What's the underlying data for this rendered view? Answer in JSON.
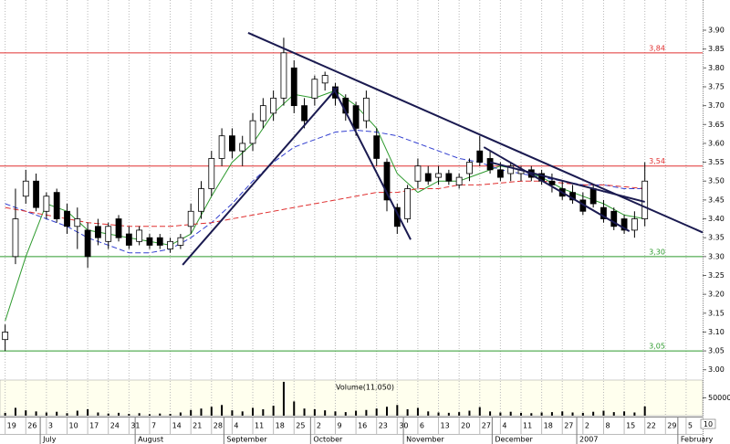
{
  "chart_data": {
    "type": "candlestick",
    "xlim": [
      -0.5,
      67.6
    ],
    "ylim": [
      2.98,
      3.98
    ],
    "xticks": [
      {
        "value": 0,
        "label": "19"
      },
      {
        "value": 2,
        "label": "26"
      },
      {
        "value": 4,
        "label": "3"
      },
      {
        "value": 6,
        "label": "10"
      },
      {
        "value": 8,
        "label": "17"
      },
      {
        "value": 10,
        "label": "24"
      },
      {
        "value": 12,
        "label": "31"
      },
      {
        "value": 14,
        "label": "7"
      },
      {
        "value": 16,
        "label": "14"
      },
      {
        "value": 18,
        "label": "21"
      },
      {
        "value": 20,
        "label": "28"
      },
      {
        "value": 22,
        "label": "4"
      },
      {
        "value": 24,
        "label": "11"
      },
      {
        "value": 26,
        "label": "18"
      },
      {
        "value": 28,
        "label": "25"
      },
      {
        "value": 30,
        "label": "2"
      },
      {
        "value": 32,
        "label": "9"
      },
      {
        "value": 34,
        "label": "16"
      },
      {
        "value": 36,
        "label": "23"
      },
      {
        "value": 38,
        "label": "30"
      },
      {
        "value": 40,
        "label": "6"
      },
      {
        "value": 42,
        "label": "13"
      },
      {
        "value": 44,
        "label": "20"
      },
      {
        "value": 46,
        "label": "27"
      },
      {
        "value": 48,
        "label": "4"
      },
      {
        "value": 50,
        "label": "11"
      },
      {
        "value": 52,
        "label": "18"
      },
      {
        "value": 54,
        "label": "27"
      },
      {
        "value": 56,
        "label": "2"
      },
      {
        "value": 58,
        "label": "8"
      },
      {
        "value": 60,
        "label": "15"
      },
      {
        "value": 62,
        "label": "22"
      },
      {
        "value": 64,
        "label": "29"
      },
      {
        "value": 66,
        "label": "5"
      }
    ],
    "months": [
      {
        "value": 3.4,
        "label": "July"
      },
      {
        "value": 12.6,
        "label": "August"
      },
      {
        "value": 21.2,
        "label": "September"
      },
      {
        "value": 29.6,
        "label": "October"
      },
      {
        "value": 38.6,
        "label": "November"
      },
      {
        "value": 47.2,
        "label": "December"
      },
      {
        "value": 55.4,
        "label": "2007"
      },
      {
        "value": 65.2,
        "label": "February"
      }
    ],
    "yticks": [
      {
        "value": 3.0,
        "label": "3.00"
      },
      3.05,
      {
        "value": 3.1,
        "label": "3.10"
      },
      3.15,
      {
        "value": 3.2,
        "label": "3.20"
      },
      3.25,
      {
        "value": 3.3,
        "label": "3.30"
      },
      3.35,
      {
        "value": 3.4,
        "label": "3.40"
      },
      3.45,
      {
        "value": 3.5,
        "label": "3.50"
      },
      3.55,
      {
        "value": 3.6,
        "label": "3.60"
      },
      3.65,
      {
        "value": 3.7,
        "label": "3.70"
      },
      3.75,
      {
        "value": 3.8,
        "label": "3.80"
      },
      3.85,
      {
        "value": 3.9,
        "label": "3.90"
      }
    ],
    "open": [
      3.08,
      3.3,
      3.46,
      3.5,
      3.42,
      3.47,
      3.42,
      3.38,
      3.37,
      3.38,
      3.34,
      3.4,
      3.36,
      3.34,
      3.35,
      3.35,
      3.32,
      3.33,
      3.38,
      3.42,
      3.48,
      3.56,
      3.62,
      3.58,
      3.6,
      3.66,
      3.68,
      3.72,
      3.8,
      3.7,
      3.72,
      3.76,
      3.75,
      3.72,
      3.7,
      3.66,
      3.62,
      3.55,
      3.43,
      3.4,
      3.5,
      3.52,
      3.51,
      3.52,
      3.49,
      3.52,
      3.58,
      3.56,
      3.53,
      3.52,
      3.52,
      3.53,
      3.52,
      3.5,
      3.48,
      3.47,
      3.45,
      3.48,
      3.43,
      3.42,
      3.4,
      3.37,
      3.4
    ],
    "high": [
      3.12,
      3.48,
      3.53,
      3.52,
      3.47,
      3.48,
      3.44,
      3.43,
      3.39,
      3.4,
      3.39,
      3.41,
      3.38,
      3.38,
      3.36,
      3.36,
      3.35,
      3.36,
      3.44,
      3.5,
      3.58,
      3.64,
      3.64,
      3.62,
      3.68,
      3.72,
      3.74,
      3.88,
      3.82,
      3.72,
      3.78,
      3.79,
      3.76,
      3.73,
      3.71,
      3.74,
      3.64,
      3.56,
      3.44,
      3.49,
      3.56,
      3.54,
      3.54,
      3.53,
      3.52,
      3.56,
      3.62,
      3.58,
      3.55,
      3.55,
      3.54,
      3.54,
      3.53,
      3.52,
      3.5,
      3.49,
      3.47,
      3.49,
      3.45,
      3.43,
      3.41,
      3.42,
      3.55
    ],
    "low": [
      3.05,
      3.28,
      3.44,
      3.42,
      3.4,
      3.39,
      3.36,
      3.32,
      3.27,
      3.33,
      3.32,
      3.34,
      3.32,
      3.33,
      3.32,
      3.32,
      3.31,
      3.32,
      3.36,
      3.4,
      3.46,
      3.54,
      3.56,
      3.54,
      3.58,
      3.64,
      3.66,
      3.7,
      3.68,
      3.64,
      3.7,
      3.74,
      3.7,
      3.66,
      3.62,
      3.64,
      3.54,
      3.42,
      3.36,
      3.39,
      3.48,
      3.49,
      3.49,
      3.49,
      3.48,
      3.5,
      3.54,
      3.52,
      3.5,
      3.5,
      3.5,
      3.5,
      3.49,
      3.47,
      3.45,
      3.44,
      3.41,
      3.43,
      3.39,
      3.37,
      3.36,
      3.35,
      3.38
    ],
    "close": [
      3.1,
      3.4,
      3.5,
      3.43,
      3.46,
      3.4,
      3.38,
      3.4,
      3.3,
      3.35,
      3.38,
      3.35,
      3.33,
      3.37,
      3.33,
      3.33,
      3.34,
      3.35,
      3.42,
      3.48,
      3.56,
      3.62,
      3.58,
      3.6,
      3.66,
      3.7,
      3.72,
      3.84,
      3.7,
      3.66,
      3.77,
      3.78,
      3.72,
      3.68,
      3.64,
      3.72,
      3.56,
      3.45,
      3.38,
      3.48,
      3.54,
      3.5,
      3.52,
      3.5,
      3.51,
      3.55,
      3.55,
      3.53,
      3.51,
      3.54,
      3.53,
      3.51,
      3.5,
      3.49,
      3.46,
      3.45,
      3.42,
      3.44,
      3.4,
      3.38,
      3.37,
      3.4,
      3.5
    ],
    "moving_averages": [
      {
        "color": "#2e9a2e",
        "dashed": false,
        "x": [
          0,
          2,
          4,
          6,
          8,
          10,
          12,
          14,
          16,
          18,
          20,
          22,
          24,
          26,
          28,
          30,
          32,
          34,
          36,
          38,
          40,
          42,
          44,
          46,
          48,
          50,
          52,
          54,
          56,
          58,
          60,
          62
        ],
        "values": [
          3.13,
          3.3,
          3.44,
          3.42,
          3.37,
          3.36,
          3.35,
          3.34,
          3.33,
          3.36,
          3.46,
          3.55,
          3.6,
          3.68,
          3.73,
          3.72,
          3.74,
          3.7,
          3.64,
          3.52,
          3.47,
          3.5,
          3.5,
          3.52,
          3.54,
          3.53,
          3.51,
          3.48,
          3.46,
          3.44,
          3.41,
          3.4
        ]
      },
      {
        "color": "#3340d0",
        "dashed": true,
        "x": [
          0,
          2,
          4,
          6,
          8,
          10,
          12,
          14,
          16,
          18,
          20,
          22,
          24,
          26,
          28,
          30,
          32,
          34,
          36,
          38,
          40,
          42,
          44,
          46,
          48,
          50,
          52,
          54,
          56,
          58,
          60,
          62
        ],
        "values": [
          3.44,
          3.42,
          3.4,
          3.38,
          3.35,
          3.33,
          3.31,
          3.31,
          3.32,
          3.35,
          3.39,
          3.44,
          3.5,
          3.55,
          3.59,
          3.61,
          3.63,
          3.635,
          3.63,
          3.62,
          3.6,
          3.58,
          3.56,
          3.55,
          3.53,
          3.52,
          3.51,
          3.5,
          3.49,
          3.49,
          3.48,
          3.48
        ]
      },
      {
        "color": "#e03030",
        "dashed": true,
        "x": [
          0,
          2,
          4,
          6,
          8,
          10,
          12,
          14,
          16,
          18,
          20,
          22,
          24,
          26,
          28,
          30,
          32,
          34,
          36,
          38,
          40,
          42,
          44,
          46,
          48,
          50,
          52,
          54,
          56,
          58,
          60,
          62
        ],
        "values": [
          3.43,
          3.42,
          3.41,
          3.4,
          3.39,
          3.385,
          3.38,
          3.38,
          3.38,
          3.385,
          3.39,
          3.4,
          3.41,
          3.42,
          3.43,
          3.44,
          3.45,
          3.46,
          3.47,
          3.47,
          3.48,
          3.48,
          3.49,
          3.49,
          3.495,
          3.5,
          3.5,
          3.495,
          3.49,
          3.49,
          3.485,
          3.48
        ]
      }
    ],
    "levels": [
      {
        "value": 3.84,
        "label": "3,84",
        "color": "#e03030"
      },
      {
        "value": 3.54,
        "label": "3,54",
        "color": "#e03030"
      },
      {
        "value": 3.3,
        "label": "3,30",
        "color": "#2e9a2e"
      },
      {
        "value": 3.05,
        "label": "3,05",
        "color": "#2e9a2e"
      }
    ],
    "trendlines": [
      {
        "x": [
          23.55,
          67.6
        ],
        "y": [
          3.893,
          3.364
        ]
      },
      {
        "x": [
          17.2,
          32.2
        ],
        "y": [
          3.278,
          3.748
        ]
      },
      {
        "x": [
          31.8,
          39.3
        ],
        "y": [
          3.748,
          3.345
        ]
      },
      {
        "x": [
          46.4,
          60.5
        ],
        "y": [
          3.59,
          3.367
        ]
      },
      {
        "x": [
          47,
          62
        ],
        "y": [
          3.55,
          3.445
        ]
      }
    ],
    "volume": {
      "title": "Volume(11,050)",
      "ylim": [
        0,
        100000
      ],
      "yticks": [
        50000
      ],
      "scale_label": "10",
      "values": [
        8000,
        22000,
        15000,
        12000,
        9000,
        11000,
        7000,
        14000,
        18000,
        9000,
        6000,
        8000,
        5000,
        7000,
        4000,
        6000,
        5000,
        9000,
        16000,
        20000,
        25000,
        30000,
        15000,
        12000,
        22000,
        18000,
        28000,
        95000,
        40000,
        20000,
        18000,
        15000,
        12000,
        10000,
        14000,
        16000,
        20000,
        25000,
        30000,
        18000,
        22000,
        12000,
        9000,
        8000,
        10000,
        14000,
        24000,
        12000,
        9000,
        11000,
        8000,
        7000,
        9000,
        10000,
        12000,
        9000,
        8000,
        11000,
        14000,
        10000,
        12000,
        9000,
        26000
      ]
    }
  }
}
